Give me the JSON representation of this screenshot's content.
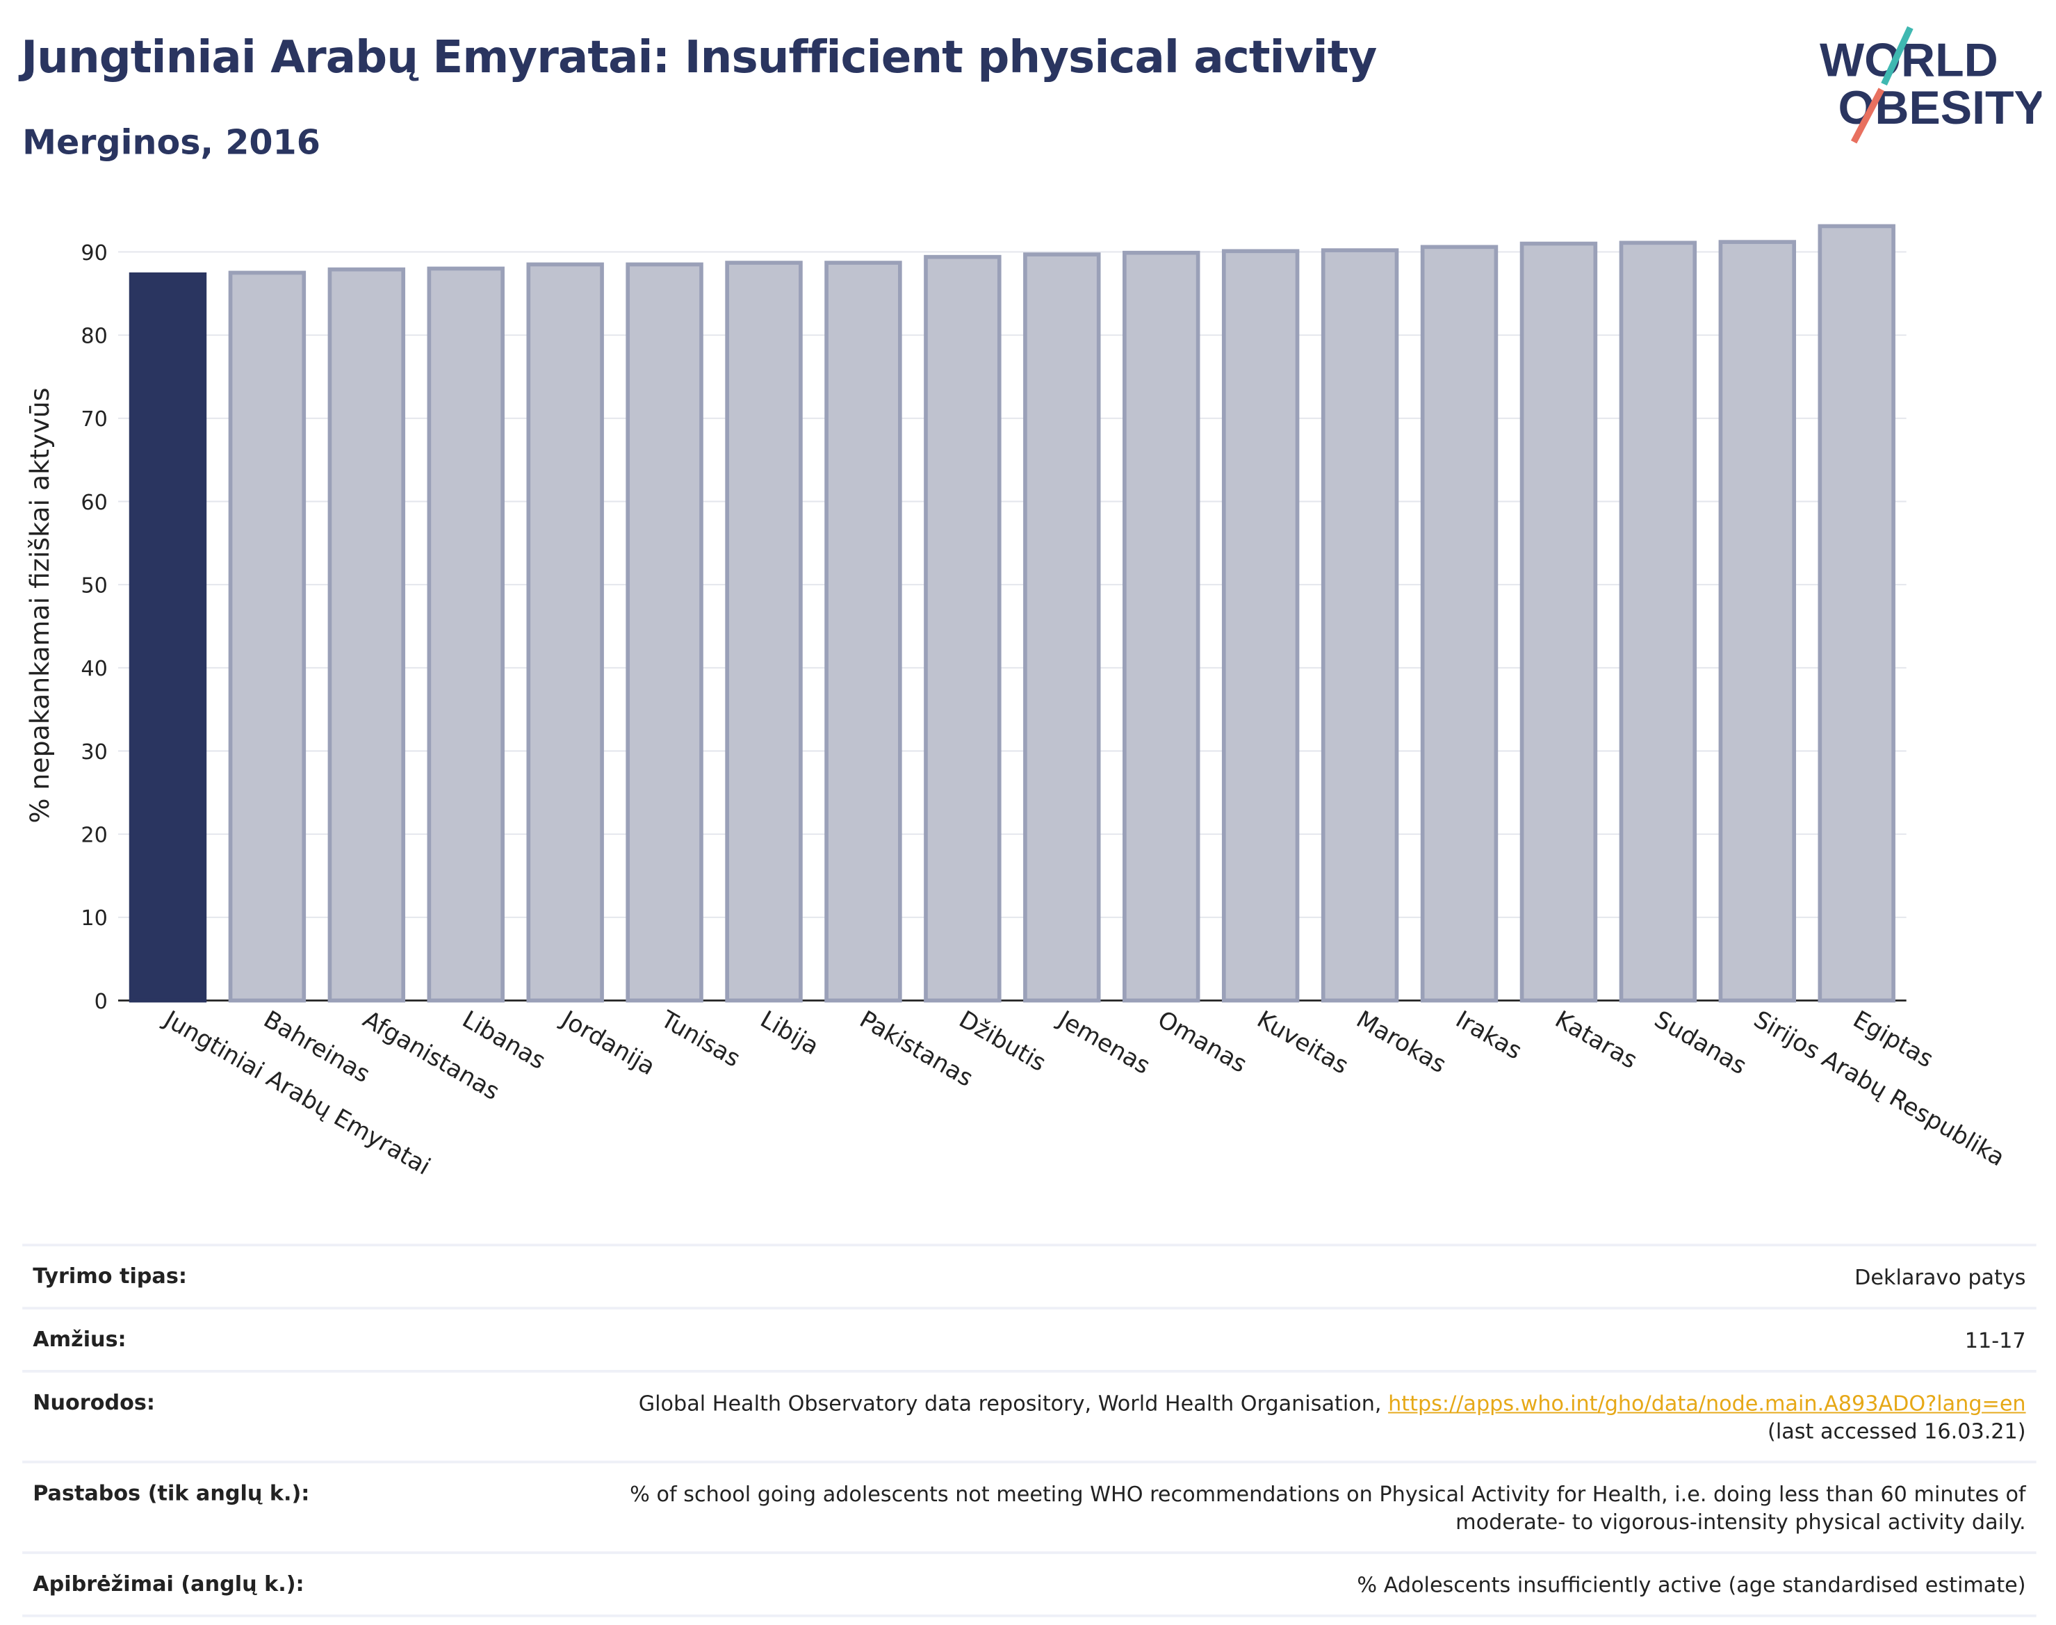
{
  "header": {
    "title": "Jungtiniai Arabų Emyratai: Insufficient physical activity",
    "subtitle": "Merginos, 2016"
  },
  "logo": {
    "line1": "WORLD",
    "line2": "OBESITY",
    "accent_teal": "#3fb8b1",
    "accent_coral": "#e8705f"
  },
  "chart_data": {
    "type": "bar",
    "ylabel": "% nepakankamai fiziškai aktyvūs",
    "ylim": [
      0,
      95
    ],
    "yticks": [
      0,
      10,
      20,
      30,
      40,
      50,
      60,
      70,
      80,
      90
    ],
    "grid": true,
    "highlight_color": "#2a3560",
    "bar_color": "#bfc2cf",
    "bar_edge_color": "#9aa0b8",
    "categories": [
      "Jungtiniai Arabų Emyratai",
      "Bahreinas",
      "Afganistanas",
      "Libanas",
      "Jordanija",
      "Tunisas",
      "Libija",
      "Pakistanas",
      "Džibutis",
      "Jemenas",
      "Omanas",
      "Kuveitas",
      "Marokas",
      "Irakas",
      "Kataras",
      "Sudanas",
      "Sirijos Arabų Respublika",
      "Egiptas"
    ],
    "values": [
      87.3,
      87.5,
      87.9,
      88.0,
      88.5,
      88.5,
      88.7,
      88.7,
      89.4,
      89.7,
      89.9,
      90.1,
      90.2,
      90.6,
      91.0,
      91.1,
      91.2,
      93.1
    ],
    "highlight_index": 0
  },
  "info_table": [
    {
      "key": "Tyrimo tipas:",
      "value": "Deklaravo patys"
    },
    {
      "key": "Amžius:",
      "value": "11-17"
    },
    {
      "key": "Nuorodos:",
      "value": "Global Health Observatory data repository, World Health Organisation,",
      "link": "https://apps.who.int/gho/data/node.main.A893ADO?lang=en",
      "suffix": "(last accessed 16.03.21)"
    },
    {
      "key": "Pastabos (tik anglų k.):",
      "value": "% of school going adolescents not meeting WHO recommendations on Physical Activity for Health, i.e. doing less than 60 minutes of moderate- to vigorous-intensity physical activity daily."
    },
    {
      "key": "Apibrėžimai (anglų k.):",
      "value": "% Adolescents insufficiently active (age standardised estimate)"
    }
  ]
}
